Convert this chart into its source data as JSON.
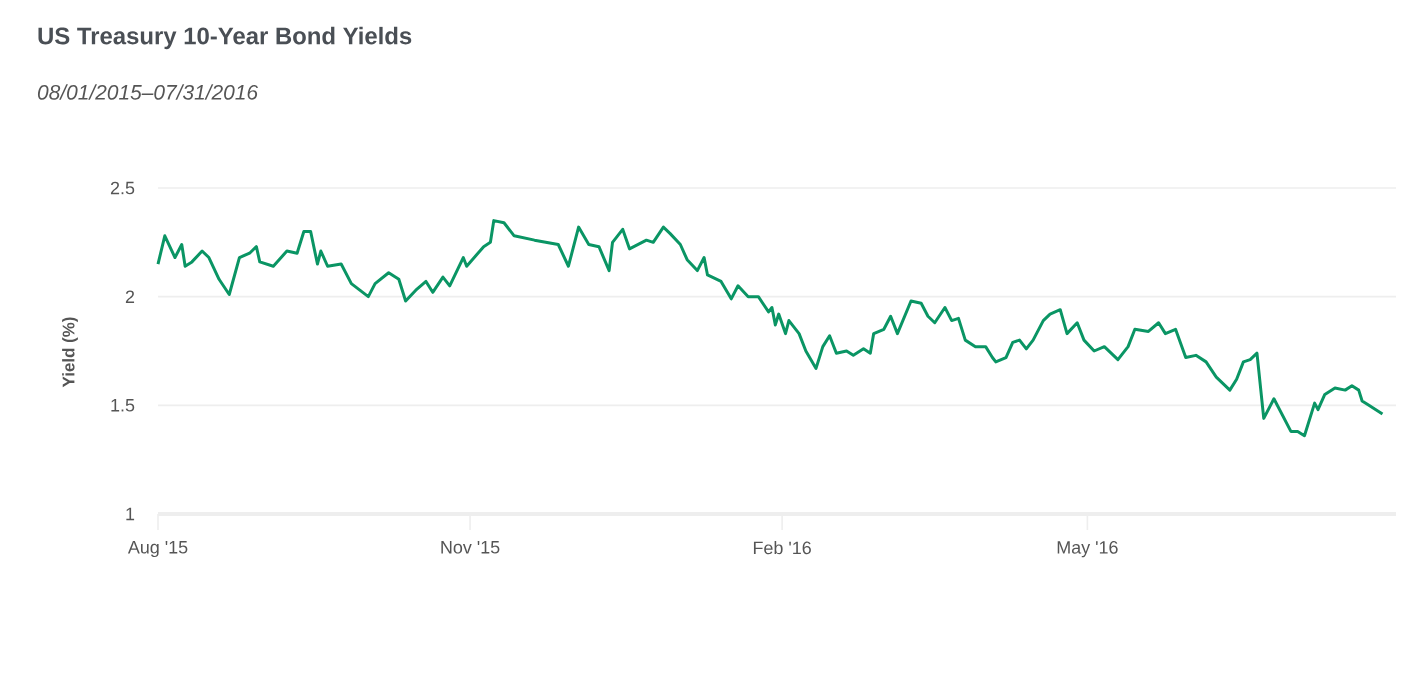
{
  "chart_data": {
    "type": "line",
    "title": "US Treasury 10-Year Bond Yields",
    "subtitle": "08/01/2015–07/31/2016",
    "ylabel": "Yield (%)",
    "x": [
      "2015-08-01",
      "2015-08-03",
      "2015-08-06",
      "2015-08-08",
      "2015-08-09",
      "2015-08-11",
      "2015-08-14",
      "2015-08-16",
      "2015-08-19",
      "2015-08-22",
      "2015-08-25",
      "2015-08-28",
      "2015-08-30",
      "2015-08-31",
      "2015-09-04",
      "2015-09-08",
      "2015-09-11",
      "2015-09-13",
      "2015-09-15",
      "2015-09-17",
      "2015-09-18",
      "2015-09-20",
      "2015-09-24",
      "2015-09-27",
      "2015-10-02",
      "2015-10-04",
      "2015-10-08",
      "2015-10-11",
      "2015-10-13",
      "2015-10-16",
      "2015-10-19",
      "2015-10-21",
      "2015-10-24",
      "2015-10-26",
      "2015-10-30",
      "2015-10-31",
      "2015-11-05",
      "2015-11-07",
      "2015-11-08",
      "2015-11-11",
      "2015-11-14",
      "2015-11-20",
      "2015-11-27",
      "2015-11-30",
      "2015-12-03",
      "2015-12-06",
      "2015-12-09",
      "2015-12-12",
      "2015-12-13",
      "2015-12-16",
      "2015-12-18",
      "2015-12-23",
      "2015-12-25",
      "2015-12-28",
      "2015-12-30",
      "2016-01-02",
      "2016-01-04",
      "2016-01-07",
      "2016-01-09",
      "2016-01-10",
      "2016-01-14",
      "2016-01-17",
      "2016-01-19",
      "2016-01-22",
      "2016-01-25",
      "2016-01-28",
      "2016-01-29",
      "2016-01-30",
      "2016-01-31",
      "2016-02-02",
      "2016-02-03",
      "2016-02-06",
      "2016-02-08",
      "2016-02-11",
      "2016-02-13",
      "2016-02-15",
      "2016-02-17",
      "2016-02-20",
      "2016-02-22",
      "2016-02-25",
      "2016-02-27",
      "2016-02-28",
      "2016-03-02",
      "2016-03-04",
      "2016-03-06",
      "2016-03-10",
      "2016-03-13",
      "2016-03-15",
      "2016-03-17",
      "2016-03-20",
      "2016-03-22",
      "2016-03-24",
      "2016-03-26",
      "2016-03-29",
      "2016-04-01",
      "2016-04-03",
      "2016-04-04",
      "2016-04-07",
      "2016-04-09",
      "2016-04-11",
      "2016-04-13",
      "2016-04-15",
      "2016-04-18",
      "2016-04-20",
      "2016-04-23",
      "2016-04-25",
      "2016-04-28",
      "2016-04-30",
      "2016-05-03",
      "2016-05-06",
      "2016-05-08",
      "2016-05-10",
      "2016-05-13",
      "2016-05-15",
      "2016-05-19",
      "2016-05-22",
      "2016-05-24",
      "2016-05-27",
      "2016-05-30",
      "2016-06-02",
      "2016-06-05",
      "2016-06-08",
      "2016-06-12",
      "2016-06-14",
      "2016-06-16",
      "2016-06-18",
      "2016-06-20",
      "2016-06-22",
      "2016-06-25",
      "2016-06-30",
      "2016-07-02",
      "2016-07-04",
      "2016-07-07",
      "2016-07-08",
      "2016-07-10",
      "2016-07-13",
      "2016-07-16",
      "2016-07-18",
      "2016-07-20",
      "2016-07-21",
      "2016-07-23",
      "2016-07-27"
    ],
    "values": [
      2.15,
      2.28,
      2.18,
      2.24,
      2.14,
      2.16,
      2.21,
      2.18,
      2.08,
      2.01,
      2.18,
      2.2,
      2.23,
      2.16,
      2.14,
      2.21,
      2.2,
      2.3,
      2.3,
      2.15,
      2.21,
      2.14,
      2.15,
      2.06,
      2.0,
      2.06,
      2.11,
      2.08,
      1.98,
      2.03,
      2.07,
      2.02,
      2.09,
      2.05,
      2.18,
      2.14,
      2.23,
      2.25,
      2.35,
      2.34,
      2.28,
      2.26,
      2.24,
      2.14,
      2.32,
      2.24,
      2.23,
      2.12,
      2.25,
      2.31,
      2.22,
      2.26,
      2.25,
      2.32,
      2.29,
      2.24,
      2.17,
      2.12,
      2.18,
      2.1,
      2.07,
      1.99,
      2.05,
      2.0,
      2.0,
      1.93,
      1.95,
      1.87,
      1.92,
      1.83,
      1.89,
      1.83,
      1.75,
      1.67,
      1.77,
      1.82,
      1.74,
      1.75,
      1.73,
      1.76,
      1.74,
      1.83,
      1.85,
      1.91,
      1.83,
      1.98,
      1.97,
      1.91,
      1.88,
      1.95,
      1.89,
      1.9,
      1.8,
      1.77,
      1.77,
      1.72,
      1.7,
      1.72,
      1.79,
      1.8,
      1.76,
      1.8,
      1.89,
      1.92,
      1.94,
      1.83,
      1.88,
      1.8,
      1.75,
      1.77,
      1.74,
      1.71,
      1.77,
      1.85,
      1.84,
      1.88,
      1.83,
      1.85,
      1.72,
      1.73,
      1.7,
      1.63,
      1.57,
      1.62,
      1.7,
      1.71,
      1.74,
      1.44,
      1.53,
      1.38,
      1.38,
      1.36,
      1.51,
      1.48,
      1.55,
      1.58,
      1.57,
      1.59,
      1.57,
      1.52,
      1.5,
      1.46
    ],
    "color": "#0a9564",
    "xlim": [
      "2015-08-01",
      "2016-07-31"
    ],
    "xticks": [
      {
        "value": "2015-08-01",
        "label": "Aug '15"
      },
      {
        "value": "2015-11-01",
        "label": "Nov '15"
      },
      {
        "value": "2016-02-01",
        "label": "Feb '16"
      },
      {
        "value": "2016-05-01",
        "label": "May '16"
      }
    ],
    "ylim": [
      1,
      2.5
    ],
    "yticks": [
      {
        "value": 1,
        "label": "1"
      },
      {
        "value": 1.5,
        "label": "1.5"
      },
      {
        "value": 2,
        "label": "2"
      },
      {
        "value": 2.5,
        "label": "2.5"
      }
    ],
    "grid": "y",
    "marker": "none",
    "line_style": "solid"
  }
}
